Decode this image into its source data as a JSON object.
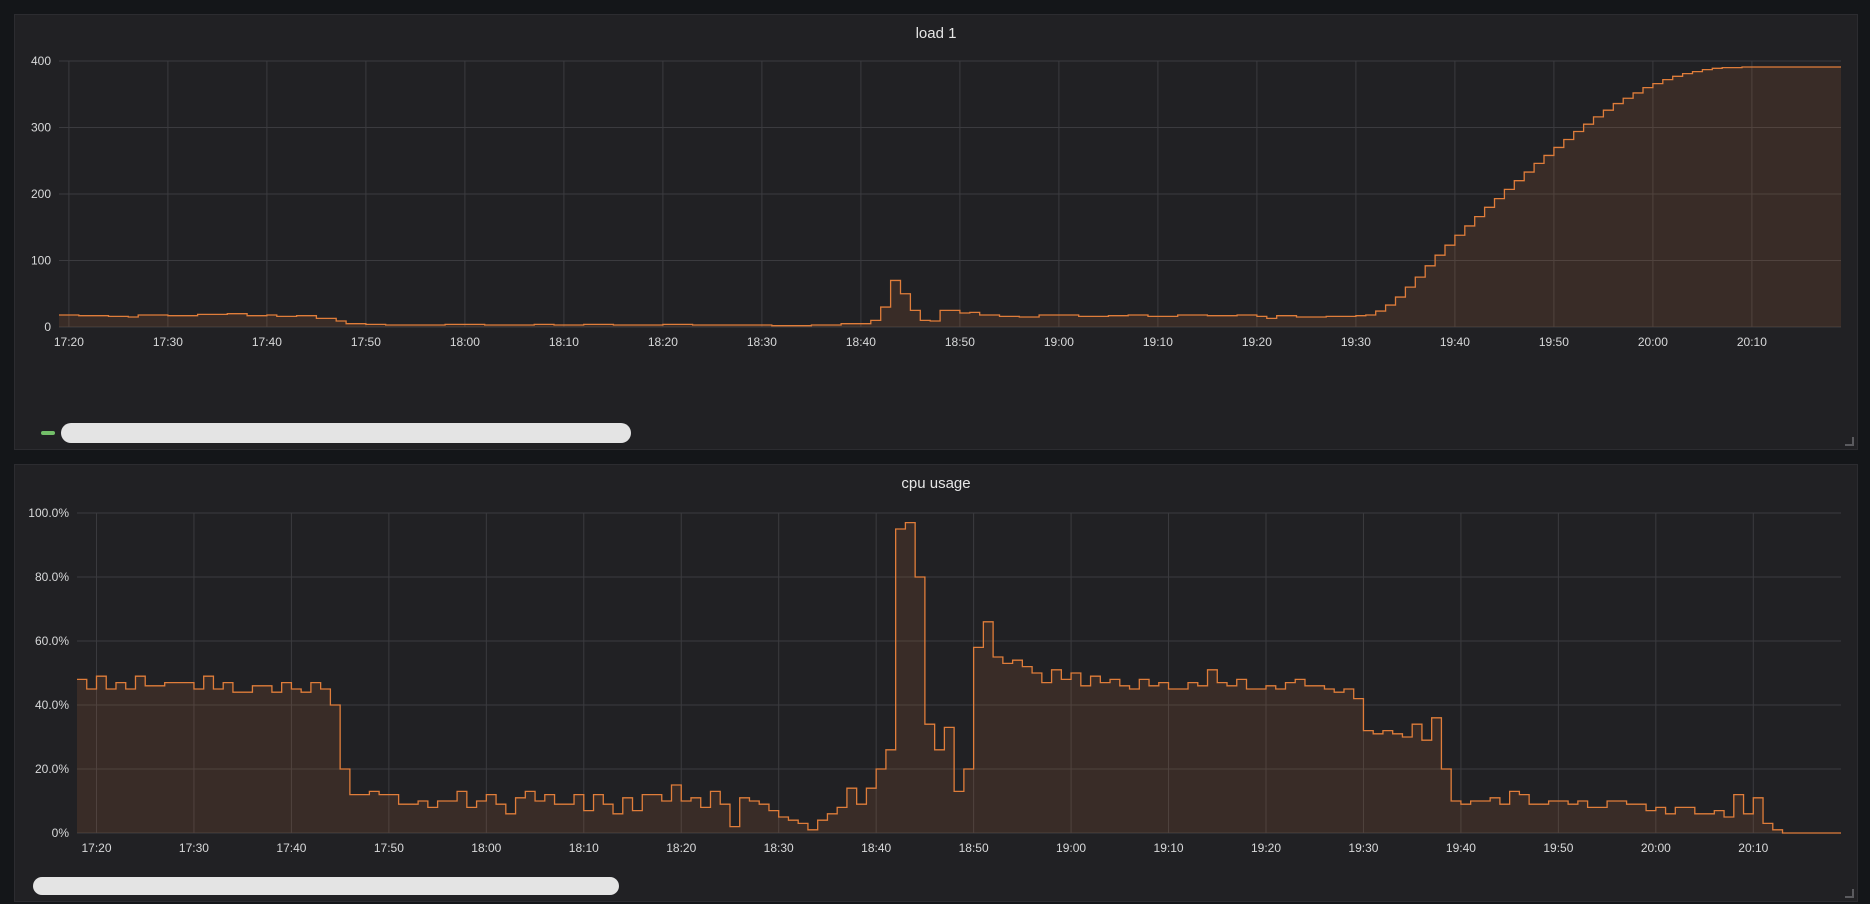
{
  "colors": {
    "series": "#e07d3a",
    "fill": "#3a2a24",
    "grid": "#3b3b3f",
    "legend_load": "#73bf69",
    "text": "#d8d9da"
  },
  "panels": [
    {
      "title": "load 1"
    },
    {
      "title": "cpu usage"
    }
  ],
  "chart_data": [
    {
      "type": "area",
      "title": "load 1",
      "xlabel": "",
      "ylabel": "",
      "x_ticks": [
        "17:20",
        "17:30",
        "17:40",
        "17:50",
        "18:00",
        "18:10",
        "18:20",
        "18:30",
        "18:40",
        "18:50",
        "19:00",
        "19:10",
        "19:20",
        "19:30",
        "19:40",
        "19:50",
        "20:00",
        "20:10"
      ],
      "x_range": [
        "17:19",
        "20:19"
      ],
      "y_ticks": [
        "0",
        "100",
        "200",
        "300",
        "400"
      ],
      "ylim": [
        0,
        400
      ],
      "grid": true,
      "series": [
        {
          "points": [
            [
              "17:19",
              18
            ],
            [
              "17:21",
              17
            ],
            [
              "17:24",
              16
            ],
            [
              "17:26",
              15
            ],
            [
              "17:27",
              18
            ],
            [
              "17:30",
              17
            ],
            [
              "17:33",
              19
            ],
            [
              "17:36",
              20
            ],
            [
              "17:38",
              17
            ],
            [
              "17:40",
              18
            ],
            [
              "17:41",
              16
            ],
            [
              "17:43",
              17
            ],
            [
              "17:45",
              13
            ],
            [
              "17:47",
              9
            ],
            [
              "17:48",
              5
            ],
            [
              "17:50",
              4
            ],
            [
              "17:52",
              3
            ],
            [
              "17:55",
              3
            ],
            [
              "17:58",
              4
            ],
            [
              "18:00",
              4
            ],
            [
              "18:02",
              3
            ],
            [
              "18:05",
              3
            ],
            [
              "18:07",
              4
            ],
            [
              "18:09",
              3
            ],
            [
              "18:12",
              4
            ],
            [
              "18:15",
              3
            ],
            [
              "18:18",
              3
            ],
            [
              "18:20",
              4
            ],
            [
              "18:23",
              3
            ],
            [
              "18:26",
              3
            ],
            [
              "18:29",
              3
            ],
            [
              "18:31",
              2
            ],
            [
              "18:33",
              2
            ],
            [
              "18:35",
              3
            ],
            [
              "18:37",
              3
            ],
            [
              "18:38",
              5
            ],
            [
              "18:40",
              5
            ],
            [
              "18:41",
              10
            ],
            [
              "18:42",
              30
            ],
            [
              "18:43",
              70
            ],
            [
              "18:44",
              50
            ],
            [
              "18:45",
              25
            ],
            [
              "18:46",
              10
            ],
            [
              "18:47",
              9
            ],
            [
              "18:48",
              25
            ],
            [
              "18:50",
              21
            ],
            [
              "18:51",
              22
            ],
            [
              "18:52",
              18
            ],
            [
              "18:54",
              16
            ],
            [
              "18:56",
              15
            ],
            [
              "18:58",
              18
            ],
            [
              "19:00",
              18
            ],
            [
              "19:02",
              16
            ],
            [
              "19:05",
              17
            ],
            [
              "19:07",
              18
            ],
            [
              "19:09",
              16
            ],
            [
              "19:12",
              18
            ],
            [
              "19:15",
              17
            ],
            [
              "19:18",
              18
            ],
            [
              "19:20",
              16
            ],
            [
              "19:21",
              13
            ],
            [
              "19:22",
              17
            ],
            [
              "19:24",
              15
            ],
            [
              "19:27",
              16
            ],
            [
              "19:30",
              17
            ],
            [
              "19:31",
              18
            ],
            [
              "19:32",
              24
            ],
            [
              "19:33",
              33
            ],
            [
              "19:34",
              45
            ],
            [
              "19:35",
              60
            ],
            [
              "19:36",
              75
            ],
            [
              "19:37",
              92
            ],
            [
              "19:38",
              108
            ],
            [
              "19:39",
              123
            ],
            [
              "19:40",
              138
            ],
            [
              "19:41",
              152
            ],
            [
              "19:42",
              166
            ],
            [
              "19:43",
              180
            ],
            [
              "19:44",
              193
            ],
            [
              "19:45",
              207
            ],
            [
              "19:46",
              220
            ],
            [
              "19:47",
              233
            ],
            [
              "19:48",
              246
            ],
            [
              "19:49",
              258
            ],
            [
              "19:50",
              270
            ],
            [
              "19:51",
              282
            ],
            [
              "19:52",
              294
            ],
            [
              "19:53",
              305
            ],
            [
              "19:54",
              316
            ],
            [
              "19:55",
              326
            ],
            [
              "19:56",
              336
            ],
            [
              "19:57",
              344
            ],
            [
              "19:58",
              352
            ],
            [
              "19:59",
              360
            ],
            [
              "20:00",
              366
            ],
            [
              "20:01",
              372
            ],
            [
              "20:02",
              377
            ],
            [
              "20:03",
              381
            ],
            [
              "20:04",
              384
            ],
            [
              "20:05",
              387
            ],
            [
              "20:06",
              389
            ],
            [
              "20:07",
              390
            ],
            [
              "20:09",
              391
            ],
            [
              "20:12",
              391
            ],
            [
              "20:19",
              391
            ]
          ]
        }
      ]
    },
    {
      "type": "area",
      "title": "cpu usage",
      "xlabel": "",
      "ylabel": "",
      "x_ticks": [
        "17:20",
        "17:30",
        "17:40",
        "17:50",
        "18:00",
        "18:10",
        "18:20",
        "18:30",
        "18:40",
        "18:50",
        "19:00",
        "19:10",
        "19:20",
        "19:30",
        "19:40",
        "19:50",
        "20:00",
        "20:10"
      ],
      "x_range": [
        "17:18",
        "20:19"
      ],
      "y_ticks": [
        "0%",
        "20.0%",
        "40.0%",
        "60.0%",
        "80.0%",
        "100.0%"
      ],
      "ylim": [
        0,
        100
      ],
      "grid": true,
      "series": [
        {
          "points": [
            [
              "17:18",
              48
            ],
            [
              "17:19",
              45
            ],
            [
              "17:20",
              49
            ],
            [
              "17:21",
              45
            ],
            [
              "17:22",
              47
            ],
            [
              "17:23",
              45
            ],
            [
              "17:24",
              49
            ],
            [
              "17:25",
              46
            ],
            [
              "17:27",
              47
            ],
            [
              "17:30",
              45
            ],
            [
              "17:31",
              49
            ],
            [
              "17:32",
              45
            ],
            [
              "17:33",
              47
            ],
            [
              "17:34",
              44
            ],
            [
              "17:36",
              46
            ],
            [
              "17:38",
              44
            ],
            [
              "17:39",
              47
            ],
            [
              "17:40",
              45
            ],
            [
              "17:41",
              44
            ],
            [
              "17:42",
              47
            ],
            [
              "17:43",
              45
            ],
            [
              "17:44",
              40
            ],
            [
              "17:45",
              36
            ],
            [
              "17:45",
              20
            ],
            [
              "17:46",
              12
            ],
            [
              "17:48",
              13
            ],
            [
              "17:49",
              12
            ],
            [
              "17:51",
              9
            ],
            [
              "17:53",
              10
            ],
            [
              "17:54",
              8
            ],
            [
              "17:55",
              10
            ],
            [
              "17:57",
              13
            ],
            [
              "17:58",
              8
            ],
            [
              "17:59",
              10
            ],
            [
              "18:00",
              12
            ],
            [
              "18:01",
              9
            ],
            [
              "18:02",
              6
            ],
            [
              "18:03",
              11
            ],
            [
              "18:04",
              13
            ],
            [
              "18:05",
              10
            ],
            [
              "18:06",
              12
            ],
            [
              "18:07",
              9
            ],
            [
              "18:09",
              12
            ],
            [
              "18:10",
              7
            ],
            [
              "18:11",
              12
            ],
            [
              "18:12",
              9
            ],
            [
              "18:13",
              6
            ],
            [
              "18:14",
              11
            ],
            [
              "18:15",
              7
            ],
            [
              "18:16",
              12
            ],
            [
              "18:18",
              10
            ],
            [
              "18:19",
              15
            ],
            [
              "18:20",
              10
            ],
            [
              "18:21",
              11
            ],
            [
              "18:22",
              8
            ],
            [
              "18:23",
              13
            ],
            [
              "18:24",
              9
            ],
            [
              "18:25",
              2
            ],
            [
              "18:26",
              11
            ],
            [
              "18:27",
              10
            ],
            [
              "18:28",
              9
            ],
            [
              "18:29",
              7
            ],
            [
              "18:30",
              5
            ],
            [
              "18:31",
              4
            ],
            [
              "18:32",
              3
            ],
            [
              "18:33",
              1
            ],
            [
              "18:34",
              4
            ],
            [
              "18:35",
              6
            ],
            [
              "18:36",
              8
            ],
            [
              "18:37",
              14
            ],
            [
              "18:38",
              9
            ],
            [
              "18:39",
              14
            ],
            [
              "18:40",
              20
            ],
            [
              "18:41",
              26
            ],
            [
              "18:42",
              95
            ],
            [
              "18:43",
              97
            ],
            [
              "18:44",
              80
            ],
            [
              "18:45",
              34
            ],
            [
              "18:46",
              26
            ],
            [
              "18:47",
              33
            ],
            [
              "18:48",
              13
            ],
            [
              "18:49",
              20
            ],
            [
              "18:50",
              58
            ],
            [
              "18:51",
              66
            ],
            [
              "18:52",
              55
            ],
            [
              "18:53",
              53
            ],
            [
              "18:54",
              54
            ],
            [
              "18:55",
              52
            ],
            [
              "18:56",
              50
            ],
            [
              "18:57",
              47
            ],
            [
              "18:58",
              51
            ],
            [
              "18:59",
              48
            ],
            [
              "19:00",
              50
            ],
            [
              "19:01",
              46
            ],
            [
              "19:02",
              49
            ],
            [
              "19:03",
              47
            ],
            [
              "19:04",
              48
            ],
            [
              "19:05",
              46
            ],
            [
              "19:06",
              45
            ],
            [
              "19:07",
              48
            ],
            [
              "19:08",
              46
            ],
            [
              "19:09",
              47
            ],
            [
              "19:10",
              45
            ],
            [
              "19:12",
              47
            ],
            [
              "19:13",
              46
            ],
            [
              "19:14",
              51
            ],
            [
              "19:15",
              47
            ],
            [
              "19:16",
              46
            ],
            [
              "19:17",
              48
            ],
            [
              "19:18",
              45
            ],
            [
              "19:20",
              46
            ],
            [
              "19:21",
              45
            ],
            [
              "19:22",
              47
            ],
            [
              "19:23",
              48
            ],
            [
              "19:24",
              46
            ],
            [
              "19:26",
              45
            ],
            [
              "19:27",
              44
            ],
            [
              "19:28",
              45
            ],
            [
              "19:29",
              42
            ],
            [
              "19:30",
              32
            ],
            [
              "19:31",
              31
            ],
            [
              "19:32",
              32
            ],
            [
              "19:33",
              31
            ],
            [
              "19:34",
              30
            ],
            [
              "19:35",
              34
            ],
            [
              "19:36",
              29
            ],
            [
              "19:37",
              36
            ],
            [
              "19:38",
              20
            ],
            [
              "19:39",
              10
            ],
            [
              "19:40",
              9
            ],
            [
              "19:41",
              10
            ],
            [
              "19:43",
              11
            ],
            [
              "19:44",
              9
            ],
            [
              "19:45",
              13
            ],
            [
              "19:46",
              12
            ],
            [
              "19:47",
              9
            ],
            [
              "19:49",
              10
            ],
            [
              "19:51",
              9
            ],
            [
              "19:52",
              10
            ],
            [
              "19:53",
              8
            ],
            [
              "19:55",
              10
            ],
            [
              "19:57",
              9
            ],
            [
              "19:59",
              7
            ],
            [
              "20:00",
              8
            ],
            [
              "20:01",
              6
            ],
            [
              "20:02",
              8
            ],
            [
              "20:04",
              6
            ],
            [
              "20:06",
              7
            ],
            [
              "20:07",
              5
            ],
            [
              "20:08",
              12
            ],
            [
              "20:09",
              6
            ],
            [
              "20:10",
              11
            ],
            [
              "20:11",
              3
            ],
            [
              "20:12",
              1
            ],
            [
              "20:13",
              0
            ],
            [
              "20:19",
              0
            ]
          ]
        }
      ]
    }
  ]
}
